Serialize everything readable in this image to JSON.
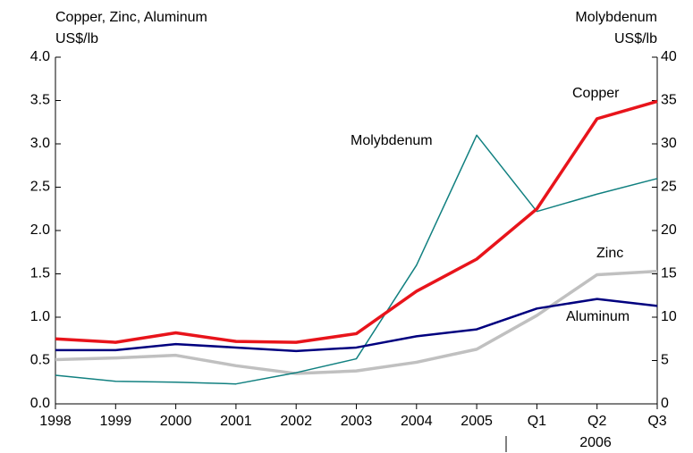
{
  "chart_data": {
    "type": "line",
    "y_label": "Copper, Zinc, Aluminum",
    "y_unit": "US$/lb",
    "y2_label": "Molybdenum",
    "y2_unit": "US$/lb",
    "categories": [
      "1998",
      "1999",
      "2000",
      "2001",
      "2002",
      "2003",
      "2004",
      "2005",
      "Q1",
      "Q2",
      "Q3"
    ],
    "group_label": "2006",
    "series": [
      {
        "name": "Copper",
        "color": "#e8141b",
        "values": [
          0.75,
          0.71,
          0.82,
          0.72,
          0.71,
          0.81,
          1.3,
          1.67,
          2.25,
          3.29,
          3.49
        ]
      },
      {
        "name": "Aluminum",
        "color": "#00007f",
        "values": [
          0.62,
          0.62,
          0.69,
          0.65,
          0.61,
          0.65,
          0.78,
          0.86,
          1.1,
          1.21,
          1.13
        ]
      },
      {
        "name": "Zinc",
        "color": "#c0c0c0",
        "values": [
          0.51,
          0.53,
          0.56,
          0.44,
          0.35,
          0.38,
          0.48,
          0.63,
          1.02,
          1.49,
          1.53
        ]
      },
      {
        "name": "Molybdenum",
        "color": "#118080",
        "axis": "y2",
        "values": [
          3.3,
          2.6,
          2.5,
          2.3,
          3.6,
          5.2,
          16,
          31,
          22.2,
          24.2,
          26
        ]
      }
    ],
    "ylim": [
      0,
      4
    ],
    "yticks": [
      {
        "value": 0,
        "label": "0.0"
      },
      {
        "value": 0.5,
        "label": "0.5"
      },
      {
        "value": 1,
        "label": "1.0"
      },
      {
        "value": 1.5,
        "label": "1.5"
      },
      {
        "value": 2,
        "label": "2.0"
      },
      {
        "value": 2.5,
        "label": "2.5"
      },
      {
        "value": 3,
        "label": "3.0"
      },
      {
        "value": 3.5,
        "label": "3.5"
      },
      {
        "value": 4,
        "label": "4.0"
      }
    ],
    "y2lim": [
      0,
      40
    ],
    "y2ticks": [
      0,
      5,
      10,
      15,
      20,
      25,
      30,
      35,
      40
    ]
  }
}
